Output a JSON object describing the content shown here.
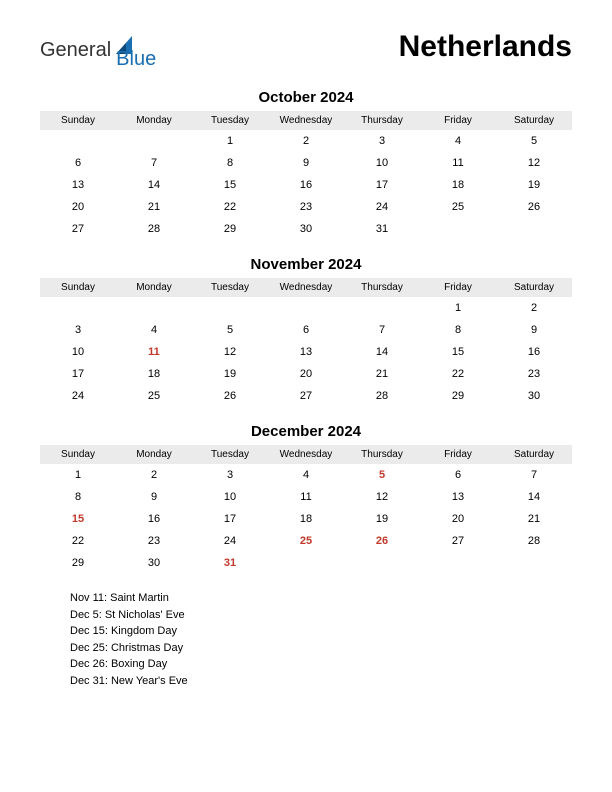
{
  "logo": {
    "general": "General",
    "blue": "Blue",
    "shape_color": "#1a6fb3"
  },
  "country": "Netherlands",
  "day_headers": [
    "Sunday",
    "Monday",
    "Tuesday",
    "Wednesday",
    "Thursday",
    "Friday",
    "Saturday"
  ],
  "colors": {
    "header_bg": "#ebebeb",
    "holiday_text": "#c0392b",
    "text": "#000000",
    "background": "#ffffff"
  },
  "months": [
    {
      "title": "October 2024",
      "weeks": [
        [
          {
            "d": ""
          },
          {
            "d": ""
          },
          {
            "d": "1"
          },
          {
            "d": "2"
          },
          {
            "d": "3"
          },
          {
            "d": "4"
          },
          {
            "d": "5"
          }
        ],
        [
          {
            "d": "6"
          },
          {
            "d": "7"
          },
          {
            "d": "8"
          },
          {
            "d": "9"
          },
          {
            "d": "10"
          },
          {
            "d": "11"
          },
          {
            "d": "12"
          }
        ],
        [
          {
            "d": "13"
          },
          {
            "d": "14"
          },
          {
            "d": "15"
          },
          {
            "d": "16"
          },
          {
            "d": "17"
          },
          {
            "d": "18"
          },
          {
            "d": "19"
          }
        ],
        [
          {
            "d": "20"
          },
          {
            "d": "21"
          },
          {
            "d": "22"
          },
          {
            "d": "23"
          },
          {
            "d": "24"
          },
          {
            "d": "25"
          },
          {
            "d": "26"
          }
        ],
        [
          {
            "d": "27"
          },
          {
            "d": "28"
          },
          {
            "d": "29"
          },
          {
            "d": "30"
          },
          {
            "d": "31"
          },
          {
            "d": ""
          },
          {
            "d": ""
          }
        ]
      ]
    },
    {
      "title": "November 2024",
      "weeks": [
        [
          {
            "d": ""
          },
          {
            "d": ""
          },
          {
            "d": ""
          },
          {
            "d": ""
          },
          {
            "d": ""
          },
          {
            "d": "1"
          },
          {
            "d": "2"
          }
        ],
        [
          {
            "d": "3"
          },
          {
            "d": "4"
          },
          {
            "d": "5"
          },
          {
            "d": "6"
          },
          {
            "d": "7"
          },
          {
            "d": "8"
          },
          {
            "d": "9"
          }
        ],
        [
          {
            "d": "10"
          },
          {
            "d": "11",
            "h": true
          },
          {
            "d": "12"
          },
          {
            "d": "13"
          },
          {
            "d": "14"
          },
          {
            "d": "15"
          },
          {
            "d": "16"
          }
        ],
        [
          {
            "d": "17"
          },
          {
            "d": "18"
          },
          {
            "d": "19"
          },
          {
            "d": "20"
          },
          {
            "d": "21"
          },
          {
            "d": "22"
          },
          {
            "d": "23"
          }
        ],
        [
          {
            "d": "24"
          },
          {
            "d": "25"
          },
          {
            "d": "26"
          },
          {
            "d": "27"
          },
          {
            "d": "28"
          },
          {
            "d": "29"
          },
          {
            "d": "30"
          }
        ]
      ]
    },
    {
      "title": "December 2024",
      "weeks": [
        [
          {
            "d": "1"
          },
          {
            "d": "2"
          },
          {
            "d": "3"
          },
          {
            "d": "4"
          },
          {
            "d": "5",
            "h": true
          },
          {
            "d": "6"
          },
          {
            "d": "7"
          }
        ],
        [
          {
            "d": "8"
          },
          {
            "d": "9"
          },
          {
            "d": "10"
          },
          {
            "d": "11"
          },
          {
            "d": "12"
          },
          {
            "d": "13"
          },
          {
            "d": "14"
          }
        ],
        [
          {
            "d": "15",
            "h": true
          },
          {
            "d": "16"
          },
          {
            "d": "17"
          },
          {
            "d": "18"
          },
          {
            "d": "19"
          },
          {
            "d": "20"
          },
          {
            "d": "21"
          }
        ],
        [
          {
            "d": "22"
          },
          {
            "d": "23"
          },
          {
            "d": "24"
          },
          {
            "d": "25",
            "h": true
          },
          {
            "d": "26",
            "h": true
          },
          {
            "d": "27"
          },
          {
            "d": "28"
          }
        ],
        [
          {
            "d": "29"
          },
          {
            "d": "30"
          },
          {
            "d": "31",
            "h": true
          },
          {
            "d": ""
          },
          {
            "d": ""
          },
          {
            "d": ""
          },
          {
            "d": ""
          }
        ]
      ]
    }
  ],
  "holidays": [
    "Nov 11: Saint Martin",
    "Dec 5: St Nicholas' Eve",
    "Dec 15: Kingdom Day",
    "Dec 25: Christmas Day",
    "Dec 26: Boxing Day",
    "Dec 31: New Year's Eve"
  ]
}
